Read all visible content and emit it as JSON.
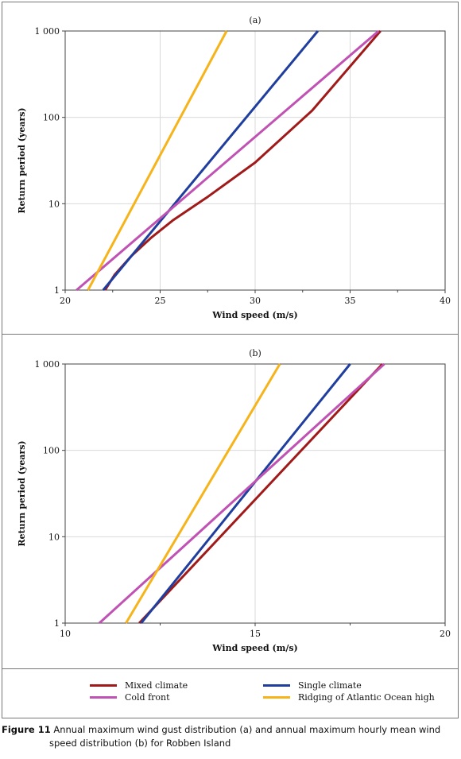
{
  "chart_data": [
    {
      "type": "line",
      "title": "(a)",
      "xlabel": "Wind speed (m/s)",
      "ylabel": "Return period (years)",
      "xlim": [
        20,
        40
      ],
      "ylim": [
        1,
        1000
      ],
      "yscale": "log",
      "xticks": [
        "20",
        "25",
        "30",
        "35",
        "40"
      ],
      "yticks": [
        "1",
        "10",
        "100",
        "1 000"
      ],
      "grid": true,
      "series": [
        {
          "name": "Mixed climate",
          "color": "#a01a1a",
          "x": [
            22.1,
            22.6,
            23.5,
            24.5,
            25.7,
            27.5,
            30.0,
            33.0,
            36.6
          ],
          "y": [
            1,
            1.5,
            2.5,
            4,
            6.5,
            12,
            30,
            120,
            1000
          ]
        },
        {
          "name": "Single climate",
          "color": "#1f3e9e",
          "x": [
            22.0,
            33.3
          ],
          "y": [
            1,
            1000
          ]
        },
        {
          "name": "Cold front",
          "color": "#c052b4",
          "x": [
            20.6,
            36.5
          ],
          "y": [
            1,
            1000
          ]
        },
        {
          "name": "Ridging of Atlantic Ocean high",
          "color": "#f6b31a",
          "x": [
            21.2,
            28.5
          ],
          "y": [
            1,
            1000
          ]
        }
      ]
    },
    {
      "type": "line",
      "title": "(b)",
      "xlabel": "Wind speed (m/s)",
      "ylabel": "Return period (years)",
      "xlim": [
        10,
        20
      ],
      "ylim": [
        1,
        1000
      ],
      "yscale": "log",
      "xticks": [
        "10",
        "15",
        "20"
      ],
      "yticks": [
        "1",
        "10",
        "100",
        "1 000"
      ],
      "grid": true,
      "series": [
        {
          "name": "Mixed climate",
          "color": "#a01a1a",
          "x": [
            11.95,
            18.35
          ],
          "y": [
            1,
            1000
          ]
        },
        {
          "name": "Single climate",
          "color": "#1f3e9e",
          "x": [
            12.0,
            17.5
          ],
          "y": [
            1,
            1000
          ]
        },
        {
          "name": "Cold front",
          "color": "#c052b4",
          "x": [
            10.9,
            18.4
          ],
          "y": [
            1,
            1000
          ]
        },
        {
          "name": "Ridging of Atlantic Ocean high",
          "color": "#f6b31a",
          "x": [
            11.6,
            15.65
          ],
          "y": [
            1,
            1000
          ]
        }
      ]
    }
  ],
  "legend": {
    "placement": "bottom",
    "items": [
      {
        "label": "Mixed climate",
        "color": "#a01a1a"
      },
      {
        "label": "Single climate",
        "color": "#1f3e9e"
      },
      {
        "label": "Cold front",
        "color": "#c052b4"
      },
      {
        "label": "Ridging of Atlantic Ocean high",
        "color": "#f6b31a"
      }
    ]
  },
  "caption": {
    "label": "Figure 11",
    "line1": " Annual maximum wind gust distribution (a) and annual maximum hourly mean wind",
    "line2": "speed distribution (b) for Robben Island"
  }
}
